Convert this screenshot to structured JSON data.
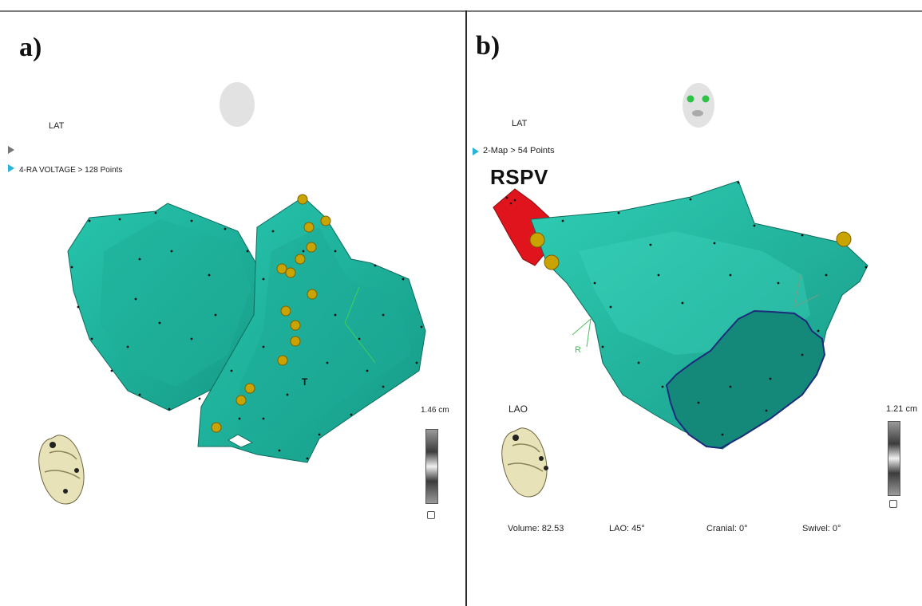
{
  "panel_a": {
    "label": "a)",
    "map_type": "LAT",
    "map_name": "4-RA VOLTAGE > 128 Points",
    "scale_value": "1.46 cm",
    "icons": [
      "head-orientation-icon",
      "heart-orientation-icon",
      "scale-bar-icon"
    ]
  },
  "panel_b": {
    "label": "b)",
    "map_type": "LAT",
    "map_name": "2-Map > 54 Points",
    "structure_label": "RSPV",
    "view_label": "LAO",
    "scale_value": "1.21 cm",
    "axis_marker": "R",
    "status": {
      "volume": "Volume:  82.53",
      "lao": "LAO: 45°",
      "cranial": "Cranial: 0°",
      "swivel": "Swivel: 0°"
    },
    "icons": [
      "face-orientation-icon",
      "heart-orientation-icon",
      "scale-bar-icon"
    ]
  },
  "colors": {
    "mesh": "#1fb8a2",
    "mesh_shadow": "#12806f",
    "vein": "#e0141c",
    "ablation_point": "#c9a400",
    "scar_outline": "#1c2b7a",
    "accent_arrow": "#2ab4d8"
  }
}
